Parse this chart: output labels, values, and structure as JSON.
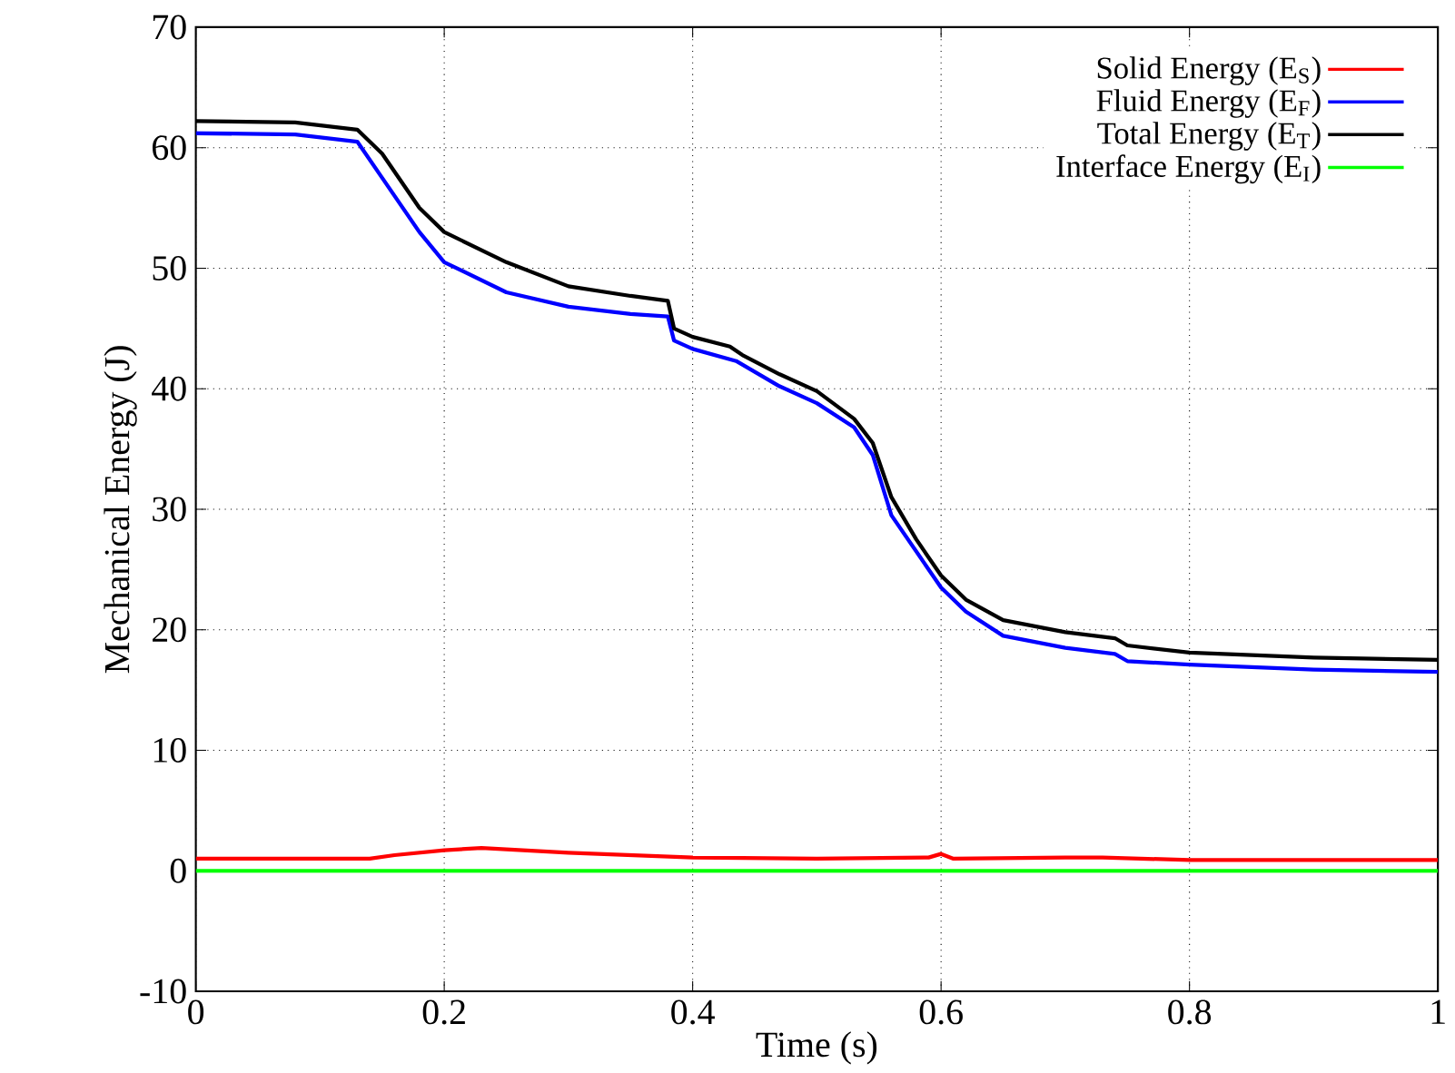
{
  "chart_data": {
    "type": "line",
    "xlabel": "Time (s)",
    "ylabel": "Mechanical Energy (J)",
    "xlim": [
      0,
      1
    ],
    "ylim": [
      -10,
      70
    ],
    "xticks": [
      0,
      0.2,
      0.4,
      0.6,
      0.8,
      1
    ],
    "yticks": [
      -10,
      0,
      10,
      20,
      30,
      40,
      50,
      60,
      70
    ],
    "grid": true,
    "legend": "top right",
    "series": [
      {
        "name": "Solid Energy (E$_{S}$)",
        "color": "#ff0000",
        "x": [
          0,
          0.14,
          0.16,
          0.2,
          0.23,
          0.3,
          0.4,
          0.5,
          0.59,
          0.6,
          0.61,
          0.7,
          0.73,
          0.8,
          1.0
        ],
        "values": [
          1.0,
          1.0,
          1.3,
          1.7,
          1.9,
          1.5,
          1.1,
          1.0,
          1.1,
          1.4,
          1.0,
          1.1,
          1.1,
          0.9,
          0.9
        ]
      },
      {
        "name": "Fluid Energy (E$_{F}$)",
        "color": "#0000ff",
        "x": [
          0,
          0.08,
          0.13,
          0.15,
          0.18,
          0.2,
          0.25,
          0.3,
          0.35,
          0.38,
          0.385,
          0.4,
          0.435,
          0.47,
          0.5,
          0.53,
          0.545,
          0.56,
          0.58,
          0.6,
          0.62,
          0.65,
          0.7,
          0.74,
          0.75,
          0.8,
          0.9,
          1.0
        ],
        "values": [
          61.2,
          61.1,
          60.5,
          57.5,
          53,
          50.5,
          48,
          46.8,
          46.2,
          46,
          44,
          43.3,
          42.3,
          40.2,
          38.8,
          36.8,
          34.5,
          29.5,
          26.5,
          23.5,
          21.5,
          19.5,
          18.5,
          18,
          17.4,
          17.1,
          16.7,
          16.5
        ]
      },
      {
        "name": "Total Energy (E$_{T}$)",
        "color": "#000000",
        "x": [
          0,
          0.08,
          0.13,
          0.15,
          0.18,
          0.2,
          0.25,
          0.3,
          0.35,
          0.38,
          0.385,
          0.4,
          0.43,
          0.44,
          0.47,
          0.5,
          0.53,
          0.545,
          0.56,
          0.58,
          0.6,
          0.62,
          0.65,
          0.7,
          0.74,
          0.75,
          0.8,
          0.9,
          1.0
        ],
        "values": [
          62.2,
          62.1,
          61.5,
          59.5,
          55,
          53,
          50.5,
          48.5,
          47.7,
          47.3,
          45,
          44.3,
          43.5,
          42.8,
          41.2,
          39.8,
          37.5,
          35.5,
          31,
          27.5,
          24.5,
          22.5,
          20.8,
          19.8,
          19.3,
          18.7,
          18.1,
          17.7,
          17.5
        ]
      },
      {
        "name": "Interface Energy (E$_{I}$)",
        "color": "#00ff00",
        "x": [
          0,
          1
        ],
        "values": [
          0,
          0
        ]
      }
    ]
  }
}
